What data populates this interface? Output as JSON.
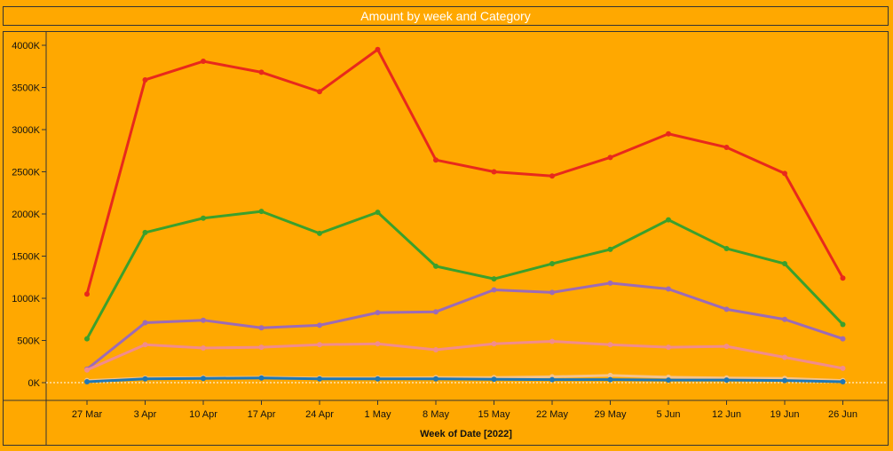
{
  "chart_data": {
    "type": "line",
    "title": "Amount by week and Category",
    "xlabel": "Week of Date [2022]",
    "ylabel": "",
    "categories": [
      "27 Mar",
      "3 Apr",
      "10 Apr",
      "17 Apr",
      "24 Apr",
      "1 May",
      "8 May",
      "15 May",
      "22 May",
      "29 May",
      "5 Jun",
      "12 Jun",
      "19 Jun",
      "26 Jun"
    ],
    "y_ticks": [
      "0K",
      "500K",
      "1000K",
      "1500K",
      "2000K",
      "2500K",
      "3000K",
      "3500K",
      "4000K"
    ],
    "ylim": [
      0,
      4000000
    ],
    "grid": false,
    "series": [
      {
        "color": "#E8291C",
        "values": [
          1050000,
          3590000,
          3810000,
          3680000,
          3450000,
          3950000,
          2640000,
          2500000,
          2450000,
          2670000,
          2950000,
          2790000,
          2480000,
          1240000
        ]
      },
      {
        "color": "#3BA02C",
        "values": [
          520000,
          1780000,
          1950000,
          2030000,
          1770000,
          2020000,
          1380000,
          1230000,
          1410000,
          1580000,
          1930000,
          1590000,
          1410000,
          690000
        ]
      },
      {
        "color": "#9C6BB6",
        "values": [
          160000,
          710000,
          740000,
          650000,
          680000,
          830000,
          840000,
          1100000,
          1070000,
          1180000,
          1110000,
          870000,
          750000,
          520000
        ]
      },
      {
        "color": "#F28C8C",
        "values": [
          150000,
          450000,
          410000,
          420000,
          450000,
          460000,
          390000,
          460000,
          490000,
          450000,
          420000,
          430000,
          300000,
          170000
        ]
      },
      {
        "color": "#F5C38A",
        "values": [
          25000,
          55000,
          60000,
          65000,
          55000,
          55000,
          60000,
          60000,
          70000,
          85000,
          65000,
          55000,
          50000,
          25000
        ]
      },
      {
        "color": "#1F77B4",
        "values": [
          10000,
          45000,
          50000,
          55000,
          45000,
          45000,
          45000,
          40000,
          35000,
          35000,
          30000,
          30000,
          25000,
          10000
        ]
      }
    ],
    "colors": {
      "background": "#FFA800",
      "zero_line": "#FFFFFF",
      "axis": "#333333"
    }
  }
}
